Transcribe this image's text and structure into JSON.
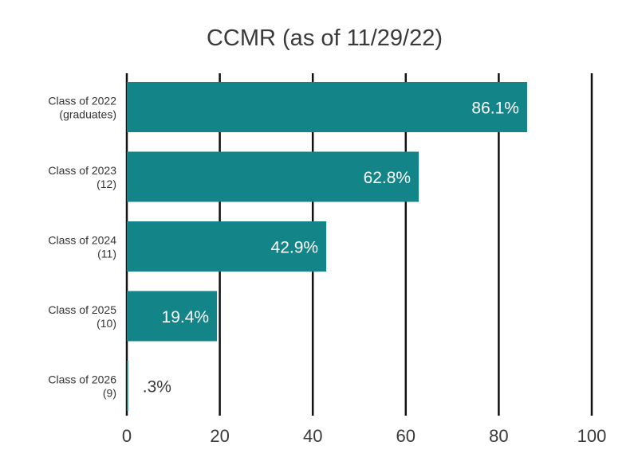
{
  "chart_data": {
    "type": "bar",
    "orientation": "horizontal",
    "title": "CCMR (as of 11/29/22)",
    "xlabel": "",
    "ylabel": "",
    "categories": [
      {
        "line1": "Class of 2022",
        "line2": "(graduates)"
      },
      {
        "line1": "Class of 2023",
        "line2": "(12)"
      },
      {
        "line1": "Class of 2024",
        "line2": "(11)"
      },
      {
        "line1": "Class of 2025",
        "line2": "(10)"
      },
      {
        "line1": "Class of 2026",
        "line2": "(9)"
      }
    ],
    "values": [
      86.1,
      62.8,
      42.9,
      19.4,
      0.3
    ],
    "data_labels": [
      "86.1%",
      "62.8%",
      "42.9%",
      "19.4%",
      ".3%"
    ],
    "xlim": [
      0,
      100
    ],
    "xticks": [
      0,
      20,
      40,
      60,
      80,
      100
    ],
    "xtick_labels": [
      "0",
      "20",
      "40",
      "60",
      "80",
      "100"
    ],
    "grid": "vertical",
    "legend": "none",
    "colors": {
      "bar": "#138589",
      "grid": "#111111"
    }
  }
}
